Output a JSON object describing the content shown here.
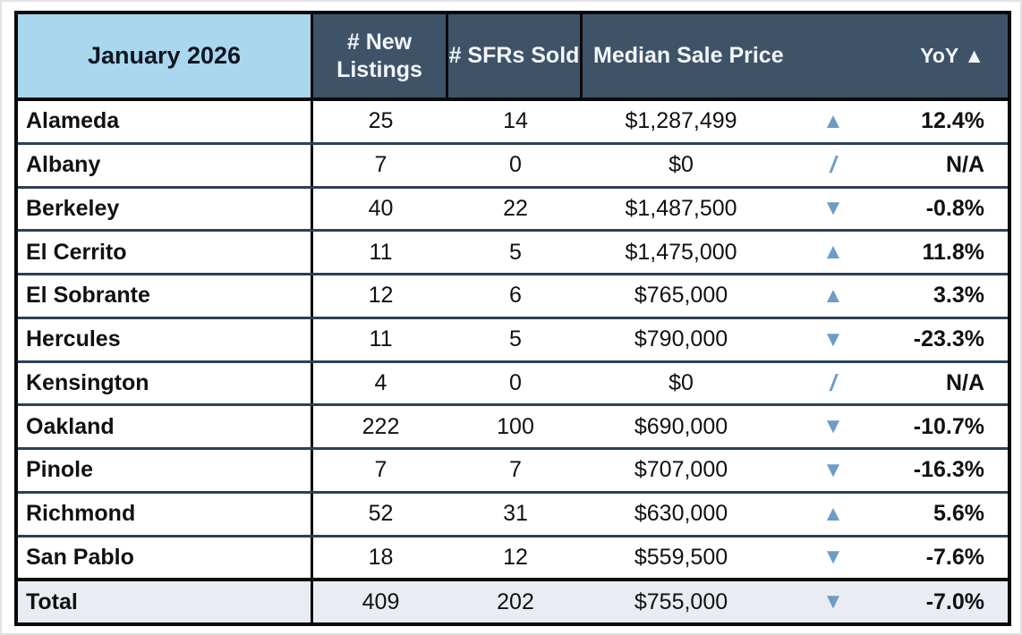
{
  "table": {
    "title": "January 2026",
    "headers": {
      "new_listings": "# New Listings",
      "sfrs_sold": "# SFRs Sold",
      "median_price": "Median Sale Price",
      "yoy": "YoY ▲"
    },
    "indicator_glyphs": {
      "up": "▲",
      "down": "▼",
      "na": "/"
    },
    "colors": {
      "header_dark": "#3e5368",
      "header_light_blue": "#a9d7ee",
      "row_divider": "#2d4156",
      "total_row_bg": "#e9edf3",
      "indicator_blue": "#6d9cc6",
      "outer_border": "#0a0a0a"
    },
    "rows": [
      {
        "city": "Alameda",
        "new_listings": "25",
        "sfrs_sold": "14",
        "median_price": "$1,287,499",
        "indicator": "up",
        "yoy": "12.4%",
        "is_total": false
      },
      {
        "city": "Albany",
        "new_listings": "7",
        "sfrs_sold": "0",
        "median_price": "$0",
        "indicator": "na",
        "yoy": "N/A",
        "is_total": false
      },
      {
        "city": "Berkeley",
        "new_listings": "40",
        "sfrs_sold": "22",
        "median_price": "$1,487,500",
        "indicator": "down",
        "yoy": "-0.8%",
        "is_total": false
      },
      {
        "city": "El Cerrito",
        "new_listings": "11",
        "sfrs_sold": "5",
        "median_price": "$1,475,000",
        "indicator": "up",
        "yoy": "11.8%",
        "is_total": false
      },
      {
        "city": "El Sobrante",
        "new_listings": "12",
        "sfrs_sold": "6",
        "median_price": "$765,000",
        "indicator": "up",
        "yoy": "3.3%",
        "is_total": false
      },
      {
        "city": "Hercules",
        "new_listings": "11",
        "sfrs_sold": "5",
        "median_price": "$790,000",
        "indicator": "down",
        "yoy": "-23.3%",
        "is_total": false
      },
      {
        "city": "Kensington",
        "new_listings": "4",
        "sfrs_sold": "0",
        "median_price": "$0",
        "indicator": "na",
        "yoy": "N/A",
        "is_total": false
      },
      {
        "city": "Oakland",
        "new_listings": "222",
        "sfrs_sold": "100",
        "median_price": "$690,000",
        "indicator": "down",
        "yoy": "-10.7%",
        "is_total": false
      },
      {
        "city": "Pinole",
        "new_listings": "7",
        "sfrs_sold": "7",
        "median_price": "$707,000",
        "indicator": "down",
        "yoy": "-16.3%",
        "is_total": false
      },
      {
        "city": "Richmond",
        "new_listings": "52",
        "sfrs_sold": "31",
        "median_price": "$630,000",
        "indicator": "up",
        "yoy": "5.6%",
        "is_total": false
      },
      {
        "city": "San Pablo",
        "new_listings": "18",
        "sfrs_sold": "12",
        "median_price": "$559,500",
        "indicator": "down",
        "yoy": "-7.6%",
        "is_total": false
      },
      {
        "city": "Total",
        "new_listings": "409",
        "sfrs_sold": "202",
        "median_price": "$755,000",
        "indicator": "down",
        "yoy": "-7.0%",
        "is_total": true
      }
    ]
  }
}
